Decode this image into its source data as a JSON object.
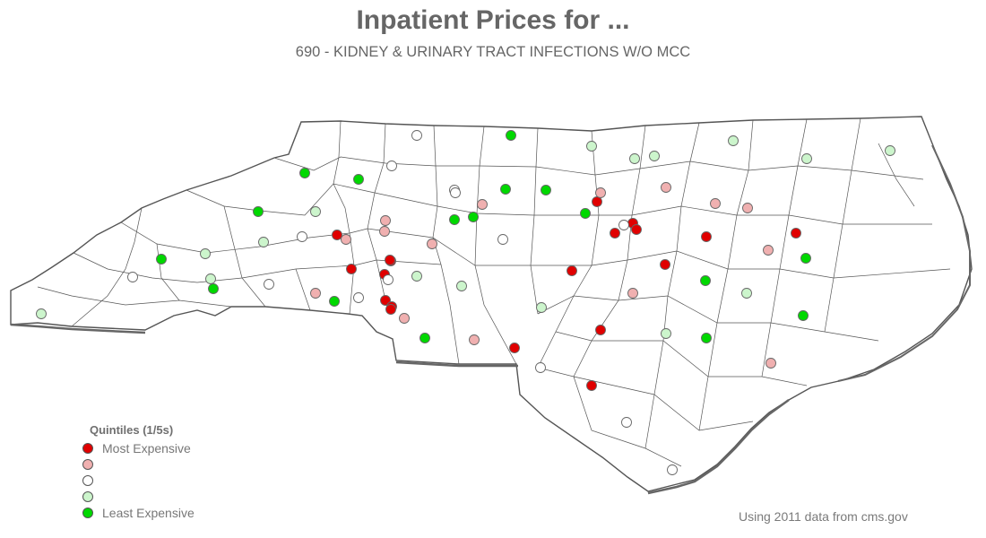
{
  "title": "Inpatient Prices for ...",
  "subtitle": "690 - KIDNEY & URINARY TRACT INFECTIONS W/O MCC",
  "source_note": "Using 2011 data from cms.gov",
  "legend": {
    "title": "Quintiles (1/5s)",
    "items": [
      {
        "label": "Most Expensive",
        "color": "#e00000"
      },
      {
        "label": "",
        "color": "#f0b0b0"
      },
      {
        "label": "",
        "color": "#ffffff"
      },
      {
        "label": "",
        "color": "#ccf5cc"
      },
      {
        "label": "Least Expensive",
        "color": "#00d800"
      }
    ]
  },
  "colors": {
    "state_fill": "#ffffff",
    "county_border": "#555555",
    "marker_outline": "#666666"
  },
  "hospitals_by_quintile": [
    {
      "quintile": 1,
      "count": 19
    },
    {
      "quintile": 2,
      "count": 15
    },
    {
      "quintile": 3,
      "count": 14
    },
    {
      "quintile": 4,
      "count": 16
    },
    {
      "quintile": 5,
      "count": 17
    }
  ]
}
